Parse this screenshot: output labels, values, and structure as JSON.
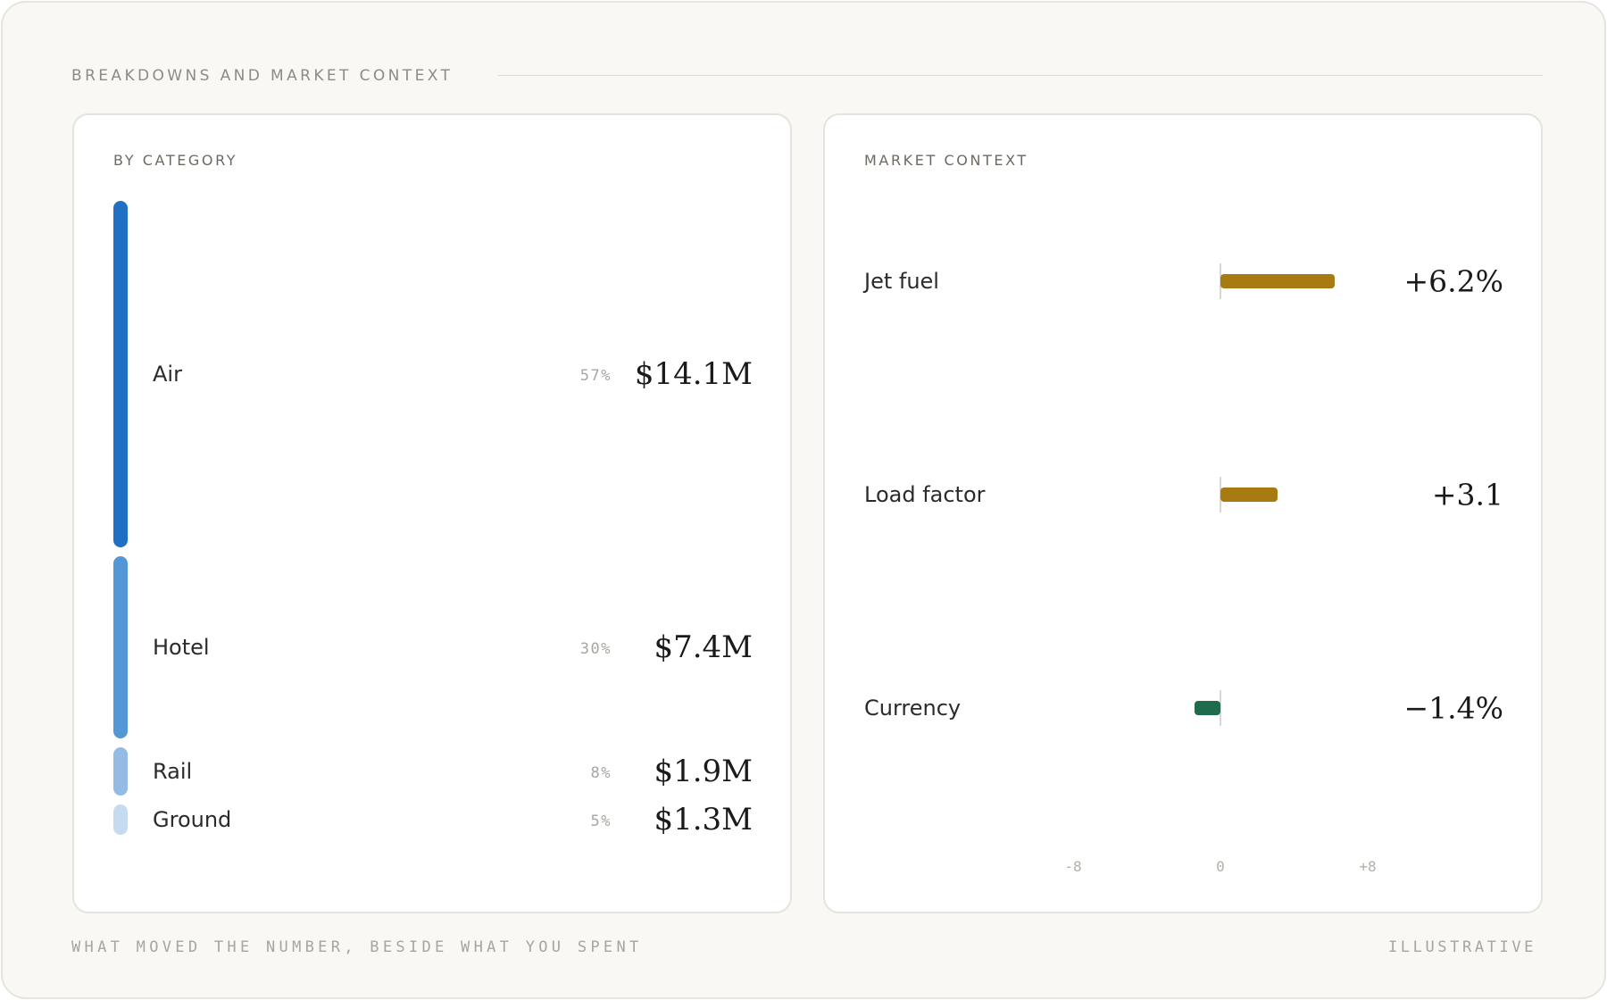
{
  "section": {
    "title": "BREAKDOWNS AND MARKET CONTEXT"
  },
  "by_category": {
    "title": "BY CATEGORY",
    "items": [
      {
        "label": "Air",
        "pct": "57%",
        "value": "$14.1M",
        "share": 0.57,
        "color": "#1f6fc5"
      },
      {
        "label": "Hotel",
        "pct": "30%",
        "value": "$7.4M",
        "share": 0.3,
        "color": "#5497d6"
      },
      {
        "label": "Rail",
        "pct": "8%",
        "value": "$1.9M",
        "share": 0.08,
        "color": "#93bbe3"
      },
      {
        "label": "Ground",
        "pct": "5%",
        "value": "$1.3M",
        "share": 0.05,
        "color": "#c6dbef"
      }
    ]
  },
  "market_context": {
    "title": "MARKET CONTEXT",
    "axis_min": -8,
    "axis_max": 8,
    "ticks": [
      "-8",
      "0",
      "+8"
    ],
    "positive_color": "#a87a12",
    "negative_color": "#1f6b4d",
    "items": [
      {
        "label": "Jet fuel",
        "value": "+6.2%",
        "delta": 6.2
      },
      {
        "label": "Load factor",
        "value": "+3.1",
        "delta": 3.1
      },
      {
        "label": "Currency",
        "value": "−1.4%",
        "delta": -1.4
      }
    ]
  },
  "footer": {
    "left": "WHAT MOVED THE NUMBER, BESIDE WHAT YOU SPENT",
    "right": "ILLUSTRATIVE"
  }
}
